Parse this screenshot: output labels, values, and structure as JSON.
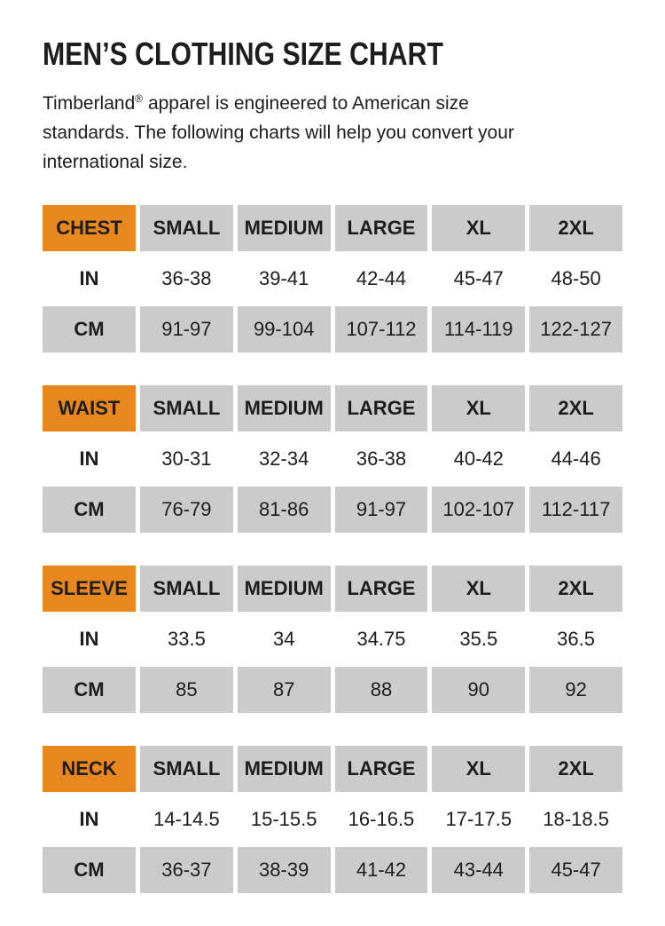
{
  "page": {
    "title": "MEN’S CLOTHING SIZE CHART"
  },
  "intro": {
    "line1_brand": "Timberland",
    "line1_reg": "®",
    "line1_rest": " apparel is engineered to American size",
    "line2": "standards. The following charts will help you convert your",
    "line3": "international size."
  },
  "colors": {
    "accent_orange": "#E8871E",
    "cell_gray": "#CBCBCB",
    "text": "#1D1D1B",
    "background": "#FFFFFF"
  },
  "tables": [
    {
      "label": "CHEST",
      "sizes": [
        "SMALL",
        "MEDIUM",
        "LARGE",
        "XL",
        "2XL"
      ],
      "rows": [
        {
          "unit": "IN",
          "values": [
            "36-38",
            "39-41",
            "42-44",
            "45-47",
            "48-50"
          ]
        },
        {
          "unit": "CM",
          "values": [
            "91-97",
            "99-104",
            "107-112",
            "114-119",
            "122-127"
          ]
        }
      ]
    },
    {
      "label": "WAIST",
      "sizes": [
        "SMALL",
        "MEDIUM",
        "LARGE",
        "XL",
        "2XL"
      ],
      "rows": [
        {
          "unit": "IN",
          "values": [
            "30-31",
            "32-34",
            "36-38",
            "40-42",
            "44-46"
          ]
        },
        {
          "unit": "CM",
          "values": [
            "76-79",
            "81-86",
            "91-97",
            "102-107",
            "112-117"
          ]
        }
      ]
    },
    {
      "label": "SLEEVE",
      "sizes": [
        "SMALL",
        "MEDIUM",
        "LARGE",
        "XL",
        "2XL"
      ],
      "rows": [
        {
          "unit": "IN",
          "values": [
            "33.5",
            "34",
            "34.75",
            "35.5",
            "36.5"
          ]
        },
        {
          "unit": "CM",
          "values": [
            "85",
            "87",
            "88",
            "90",
            "92"
          ]
        }
      ]
    },
    {
      "label": "NECK",
      "sizes": [
        "SMALL",
        "MEDIUM",
        "LARGE",
        "XL",
        "2XL"
      ],
      "rows": [
        {
          "unit": "IN",
          "values": [
            "14-14.5",
            "15-15.5",
            "16-16.5",
            "17-17.5",
            "18-18.5"
          ]
        },
        {
          "unit": "CM",
          "values": [
            "36-37",
            "38-39",
            "41-42",
            "43-44",
            "45-47"
          ]
        }
      ]
    }
  ]
}
